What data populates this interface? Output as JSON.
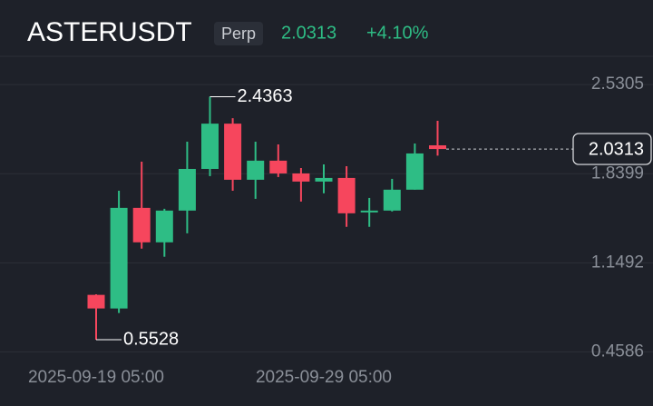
{
  "chart_data": {
    "type": "candlestick",
    "title": "ASTERUSDT",
    "badge": "Perp",
    "price": 2.0313,
    "change": "+4.10%",
    "categories": [
      "2025-09-19 05:00",
      null,
      null,
      null,
      null,
      null,
      null,
      null,
      null,
      null,
      "2025-09-29 05:00",
      null,
      null,
      null,
      null,
      null
    ],
    "open": [
      0.9007,
      0.795,
      1.575,
      1.308,
      1.554,
      1.877,
      2.228,
      1.793,
      1.941,
      1.842,
      1.779,
      1.807,
      1.547,
      1.554,
      1.716,
      2.06
    ],
    "high": [
      0.905,
      1.708,
      1.933,
      1.568,
      2.088,
      2.4363,
      2.27,
      2.088,
      2.067,
      1.884,
      1.912,
      1.898,
      1.652,
      1.8,
      2.074,
      2.25
    ],
    "low": [
      0.5528,
      0.76,
      1.259,
      1.196,
      1.378,
      1.821,
      1.708,
      1.645,
      1.814,
      1.624,
      1.688,
      1.428,
      1.428,
      1.547,
      1.716,
      1.98
    ],
    "close": [
      0.7953,
      1.575,
      1.308,
      1.554,
      1.877,
      2.228,
      1.793,
      1.941,
      1.842,
      1.779,
      1.807,
      1.533,
      1.554,
      1.716,
      1.997,
      2.0313
    ],
    "up_color": "#2ebd85",
    "down_color": "#f6465d",
    "ylim": [
      0.37,
      2.75
    ],
    "yticks": [
      0.4586,
      1.1492,
      1.8399,
      2.5305
    ],
    "grid": true
  }
}
